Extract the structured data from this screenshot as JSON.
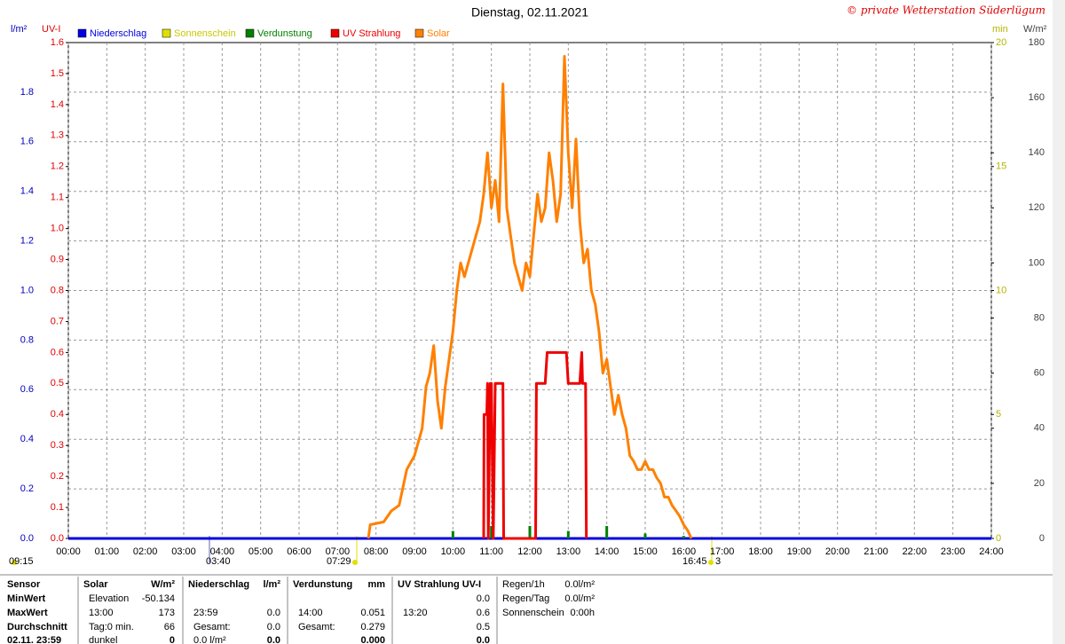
{
  "chart_data": {
    "type": "line",
    "title": "Dienstag, 02.11.2021",
    "copyright": "© private Wetterstation Süderlügum",
    "xlim": [
      0,
      24
    ],
    "xticks": [
      {
        "value": 0,
        "label": "00:00"
      },
      {
        "value": 1,
        "label": "01:00"
      },
      {
        "value": 2,
        "label": "02:00"
      },
      {
        "value": 3,
        "label": "03:00"
      },
      {
        "value": 4,
        "label": "04:00"
      },
      {
        "value": 5,
        "label": "05:00"
      },
      {
        "value": 6,
        "label": "06:00"
      },
      {
        "value": 7,
        "label": "07:00"
      },
      {
        "value": 8,
        "label": "08:00"
      },
      {
        "value": 9,
        "label": "09:00"
      },
      {
        "value": 10,
        "label": "10:00"
      },
      {
        "value": 11,
        "label": "11:00"
      },
      {
        "value": 12,
        "label": "12:00"
      },
      {
        "value": 13,
        "label": "13:00"
      },
      {
        "value": 14,
        "label": "14:00"
      },
      {
        "value": 15,
        "label": "15:00"
      },
      {
        "value": 16,
        "label": "16:00"
      },
      {
        "value": 17,
        "label": "17:00"
      },
      {
        "value": 18,
        "label": "18:00"
      },
      {
        "value": 19,
        "label": "19:00"
      },
      {
        "value": 20,
        "label": "20:00"
      },
      {
        "value": 21,
        "label": "21:00"
      },
      {
        "value": 22,
        "label": "22:00"
      },
      {
        "value": 23,
        "label": "23:00"
      },
      {
        "value": 24,
        "label": "24:00"
      }
    ],
    "grid": true,
    "y_axes": [
      {
        "label": "l/m²",
        "color": "#0000c0",
        "ylim": [
          0,
          2
        ],
        "yticks": [
          {
            "value": 0,
            "label": "0.0"
          },
          0.2,
          0.4,
          0.6,
          0.8,
          {
            "value": 1,
            "label": "1.0"
          },
          1.2,
          1.4,
          1.6,
          1.8
        ]
      },
      {
        "label": "UV-I",
        "color": "#e00000",
        "ylim": [
          0,
          1.6
        ],
        "yticks": [
          {
            "value": 0,
            "label": "0.0"
          },
          0.1,
          0.2,
          0.3,
          0.4,
          0.5,
          0.6,
          0.7,
          0.8,
          0.9,
          {
            "value": 1,
            "label": "1.0"
          },
          1.1,
          1.2,
          1.3,
          1.4,
          1.5,
          1.6
        ]
      },
      {
        "label": "min",
        "color": "#b4b400",
        "ylim": [
          0,
          20
        ],
        "yticks": [
          0,
          5,
          10,
          15,
          20
        ]
      },
      {
        "label": "W/m²",
        "color": "#404040",
        "ylim": [
          0,
          180
        ],
        "yticks": [
          0,
          20,
          40,
          60,
          80,
          100,
          120,
          140,
          160,
          180
        ]
      }
    ],
    "series": [
      {
        "name": "Niederschlag",
        "color": "#0000e0",
        "axis": 0,
        "kind": "line",
        "x": [
          0,
          24
        ],
        "values": [
          0,
          0
        ]
      },
      {
        "name": "Sonnenschein",
        "color": "#e0e000",
        "axis": 2,
        "kind": "line",
        "x": [],
        "values": []
      },
      {
        "name": "Verdunstung",
        "color": "#008000",
        "axis": 0,
        "kind": "bar",
        "x": [
          10,
          11,
          12,
          13,
          14,
          15,
          16
        ],
        "values": [
          0.03,
          0.05,
          0.05,
          0.03,
          0.05,
          0.02,
          0.01
        ]
      },
      {
        "name": "UV Strahlung",
        "color": "#ee0000",
        "axis": 1,
        "kind": "line",
        "x": [
          10.8,
          10.81,
          10.88,
          10.9,
          10.92,
          10.97,
          11.0,
          11.05,
          11.1,
          11.3,
          11.32,
          12.15,
          12.17,
          12.4,
          12.45,
          12.95,
          13.0,
          13.3,
          13.35,
          13.37,
          13.45,
          13.47
        ],
        "values": [
          0,
          0.4,
          0.4,
          0.5,
          0,
          0.5,
          0.5,
          0,
          0.5,
          0.5,
          0,
          0,
          0.5,
          0.5,
          0.6,
          0.6,
          0.5,
          0.5,
          0.6,
          0.5,
          0.5,
          0
        ]
      },
      {
        "name": "Solar",
        "color": "#ff8000",
        "axis": 3,
        "kind": "line",
        "x": [
          7.8,
          7.85,
          8.2,
          8.4,
          8.6,
          8.8,
          9.0,
          9.2,
          9.3,
          9.4,
          9.5,
          9.6,
          9.7,
          9.8,
          9.9,
          10.0,
          10.1,
          10.2,
          10.3,
          10.5,
          10.7,
          10.8,
          10.9,
          11.0,
          11.1,
          11.2,
          11.3,
          11.4,
          11.5,
          11.6,
          11.7,
          11.8,
          11.9,
          12.0,
          12.1,
          12.2,
          12.3,
          12.4,
          12.5,
          12.6,
          12.7,
          12.8,
          12.9,
          13.0,
          13.1,
          13.2,
          13.3,
          13.4,
          13.5,
          13.6,
          13.7,
          13.8,
          13.9,
          14.0,
          14.1,
          14.2,
          14.3,
          14.4,
          14.5,
          14.6,
          14.7,
          14.8,
          14.9,
          15.0,
          15.1,
          15.2,
          15.3,
          15.4,
          15.5,
          15.6,
          15.7,
          15.8,
          15.9,
          16.0,
          16.1,
          16.2
        ],
        "values": [
          0,
          5,
          6,
          10,
          12,
          25,
          30,
          40,
          55,
          60,
          70,
          50,
          40,
          55,
          65,
          75,
          90,
          100,
          95,
          105,
          115,
          125,
          140,
          120,
          130,
          115,
          165,
          120,
          110,
          100,
          95,
          90,
          100,
          95,
          110,
          125,
          115,
          120,
          140,
          130,
          115,
          125,
          175,
          140,
          120,
          145,
          115,
          100,
          105,
          90,
          85,
          75,
          60,
          65,
          55,
          45,
          52,
          45,
          40,
          30,
          28,
          25,
          25,
          28,
          25,
          25,
          22,
          20,
          15,
          15,
          12,
          10,
          8,
          5,
          3,
          0
        ]
      }
    ],
    "annotations": [
      "09:15",
      "03:40",
      "07:29",
      "16:45",
      "3"
    ]
  },
  "footer": {
    "blocks": [
      {
        "header": {
          "label": "Sensor"
        },
        "rows": [
          {
            "label": "MinWert"
          },
          {
            "label": "MaxWert"
          },
          {
            "label": "Durchschnitt"
          },
          {
            "label": "02.11. 23:59"
          }
        ]
      },
      {
        "header": {
          "label": "Solar",
          "unit": "W/m²"
        },
        "rows": [
          {
            "label": "Elevation",
            "value": "-50.134"
          },
          {
            "label": "13:00",
            "value": "173"
          },
          {
            "label": "Tag:0 min.",
            "value": "66"
          },
          {
            "label": "dunkel",
            "value": "0"
          }
        ]
      },
      {
        "header": {
          "label": "Niederschlag",
          "unit": "l/m²"
        },
        "rows": [
          {},
          {
            "label": "23:59",
            "value": "0.0"
          },
          {
            "label": "Gesamt:",
            "value": "0.0"
          },
          {
            "label": "0.0 l/m²",
            "value": "0.0"
          }
        ]
      },
      {
        "header": {
          "label": "Verdunstung",
          "unit": "mm"
        },
        "rows": [
          {},
          {
            "label": "14:00",
            "value": "0.051"
          },
          {
            "label": "Gesamt:",
            "value": "0.279"
          },
          {
            "value": "0.000"
          }
        ]
      },
      {
        "header": {
          "label": "UV Strahlung UV-I"
        },
        "rows": [
          {
            "value": "0.0"
          },
          {
            "label": "13:20",
            "value": "0.6"
          },
          {
            "value": "0.5"
          },
          {
            "value": "0.0"
          }
        ]
      },
      {
        "rows": [
          {
            "label": "Regen/1h",
            "value": "0.0l/m²"
          },
          {
            "label": "Regen/Tag",
            "value": "0.0l/m²"
          },
          {
            "label": "Sonnenschein",
            "value": "0:00h"
          }
        ]
      }
    ]
  }
}
